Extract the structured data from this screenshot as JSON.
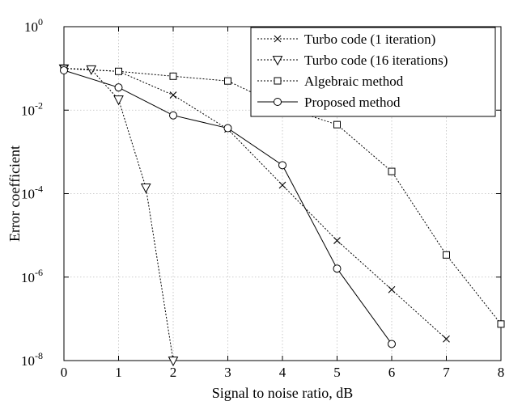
{
  "chart_data": {
    "type": "line",
    "xlabel": "Signal to noise ratio, dB",
    "ylabel": "Error coefficient",
    "xlim": [
      0,
      8
    ],
    "ylim": [
      1e-08,
      1
    ],
    "yscale": "log",
    "grid": true,
    "legend_position": "top-right",
    "x_ticks": [
      "0",
      "1",
      "2",
      "3",
      "4",
      "5",
      "6",
      "7",
      "8"
    ],
    "y_ticks": [
      {
        "base": "10",
        "exp": "0"
      },
      {
        "base": "10",
        "exp": "-2"
      },
      {
        "base": "10",
        "exp": "-4"
      },
      {
        "base": "10",
        "exp": "-6"
      },
      {
        "base": "10",
        "exp": "-8"
      }
    ],
    "series": [
      {
        "name": "Turbo code (1 iteration)",
        "marker": "x",
        "dash": "dotted",
        "x": [
          0,
          1,
          2,
          3,
          4,
          5,
          6,
          7
        ],
        "y": [
          0.1,
          0.085,
          0.023,
          0.0035,
          0.00016,
          7.5e-06,
          5e-07,
          3.3e-08
        ]
      },
      {
        "name": "Turbo code (16 iterations)",
        "marker": "triangle-down",
        "dash": "dotted",
        "x": [
          0,
          0.5,
          1,
          1.5,
          2
        ],
        "y": [
          0.1,
          0.095,
          0.018,
          0.00014,
          1e-08
        ]
      },
      {
        "name": "Algebraic method",
        "marker": "square",
        "dash": "dotted",
        "x": [
          0,
          1,
          2,
          3,
          4,
          5,
          6,
          7,
          8
        ],
        "y": [
          0.1,
          0.085,
          0.065,
          0.05,
          0.012,
          0.0045,
          0.00034,
          3.4e-06,
          7.5e-08
        ]
      },
      {
        "name": "Proposed method",
        "marker": "circle",
        "dash": "solid",
        "x": [
          0,
          1,
          2,
          3,
          4,
          5,
          6
        ],
        "y": [
          0.09,
          0.035,
          0.0075,
          0.0037,
          0.00048,
          1.6e-06,
          2.5e-08
        ]
      }
    ]
  }
}
